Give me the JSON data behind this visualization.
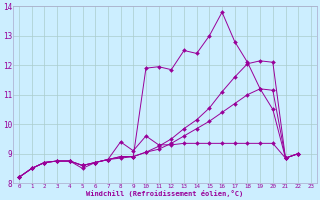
{
  "xlabel": "Windchill (Refroidissement éolien,°C)",
  "background_color": "#cceeff",
  "grid_color": "#aacccc",
  "line_color": "#990099",
  "xlim": [
    -0.5,
    23.5
  ],
  "ylim": [
    8.0,
    14.0
  ],
  "yticks": [
    8,
    9,
    10,
    11,
    12,
    13,
    14
  ],
  "xticks": [
    0,
    1,
    2,
    3,
    4,
    5,
    6,
    7,
    8,
    9,
    10,
    11,
    12,
    13,
    14,
    15,
    16,
    17,
    18,
    19,
    20,
    21,
    22,
    23
  ],
  "series": [
    [
      8.2,
      8.5,
      8.7,
      8.75,
      8.75,
      8.5,
      8.7,
      8.8,
      8.85,
      8.9,
      11.9,
      11.95,
      11.85,
      12.5,
      12.4,
      13.0,
      13.8,
      12.8,
      12.1,
      11.2,
      10.5,
      8.85,
      9.0
    ],
    [
      8.2,
      8.5,
      8.7,
      8.75,
      8.75,
      8.6,
      8.7,
      8.8,
      9.4,
      9.1,
      9.6,
      9.3,
      9.3,
      9.35,
      9.35,
      9.35,
      9.35,
      9.35,
      9.35,
      9.35,
      9.35,
      8.85,
      9.0
    ],
    [
      8.2,
      8.5,
      8.7,
      8.75,
      8.75,
      8.6,
      8.7,
      8.8,
      8.9,
      8.9,
      9.05,
      9.15,
      9.35,
      9.6,
      9.85,
      10.1,
      10.4,
      10.7,
      11.0,
      11.2,
      11.15,
      8.85,
      9.0
    ],
    [
      8.2,
      8.5,
      8.7,
      8.75,
      8.75,
      8.6,
      8.7,
      8.8,
      8.9,
      8.9,
      9.05,
      9.25,
      9.5,
      9.85,
      10.15,
      10.55,
      11.1,
      11.6,
      12.05,
      12.15,
      12.1,
      8.85,
      9.0
    ]
  ]
}
